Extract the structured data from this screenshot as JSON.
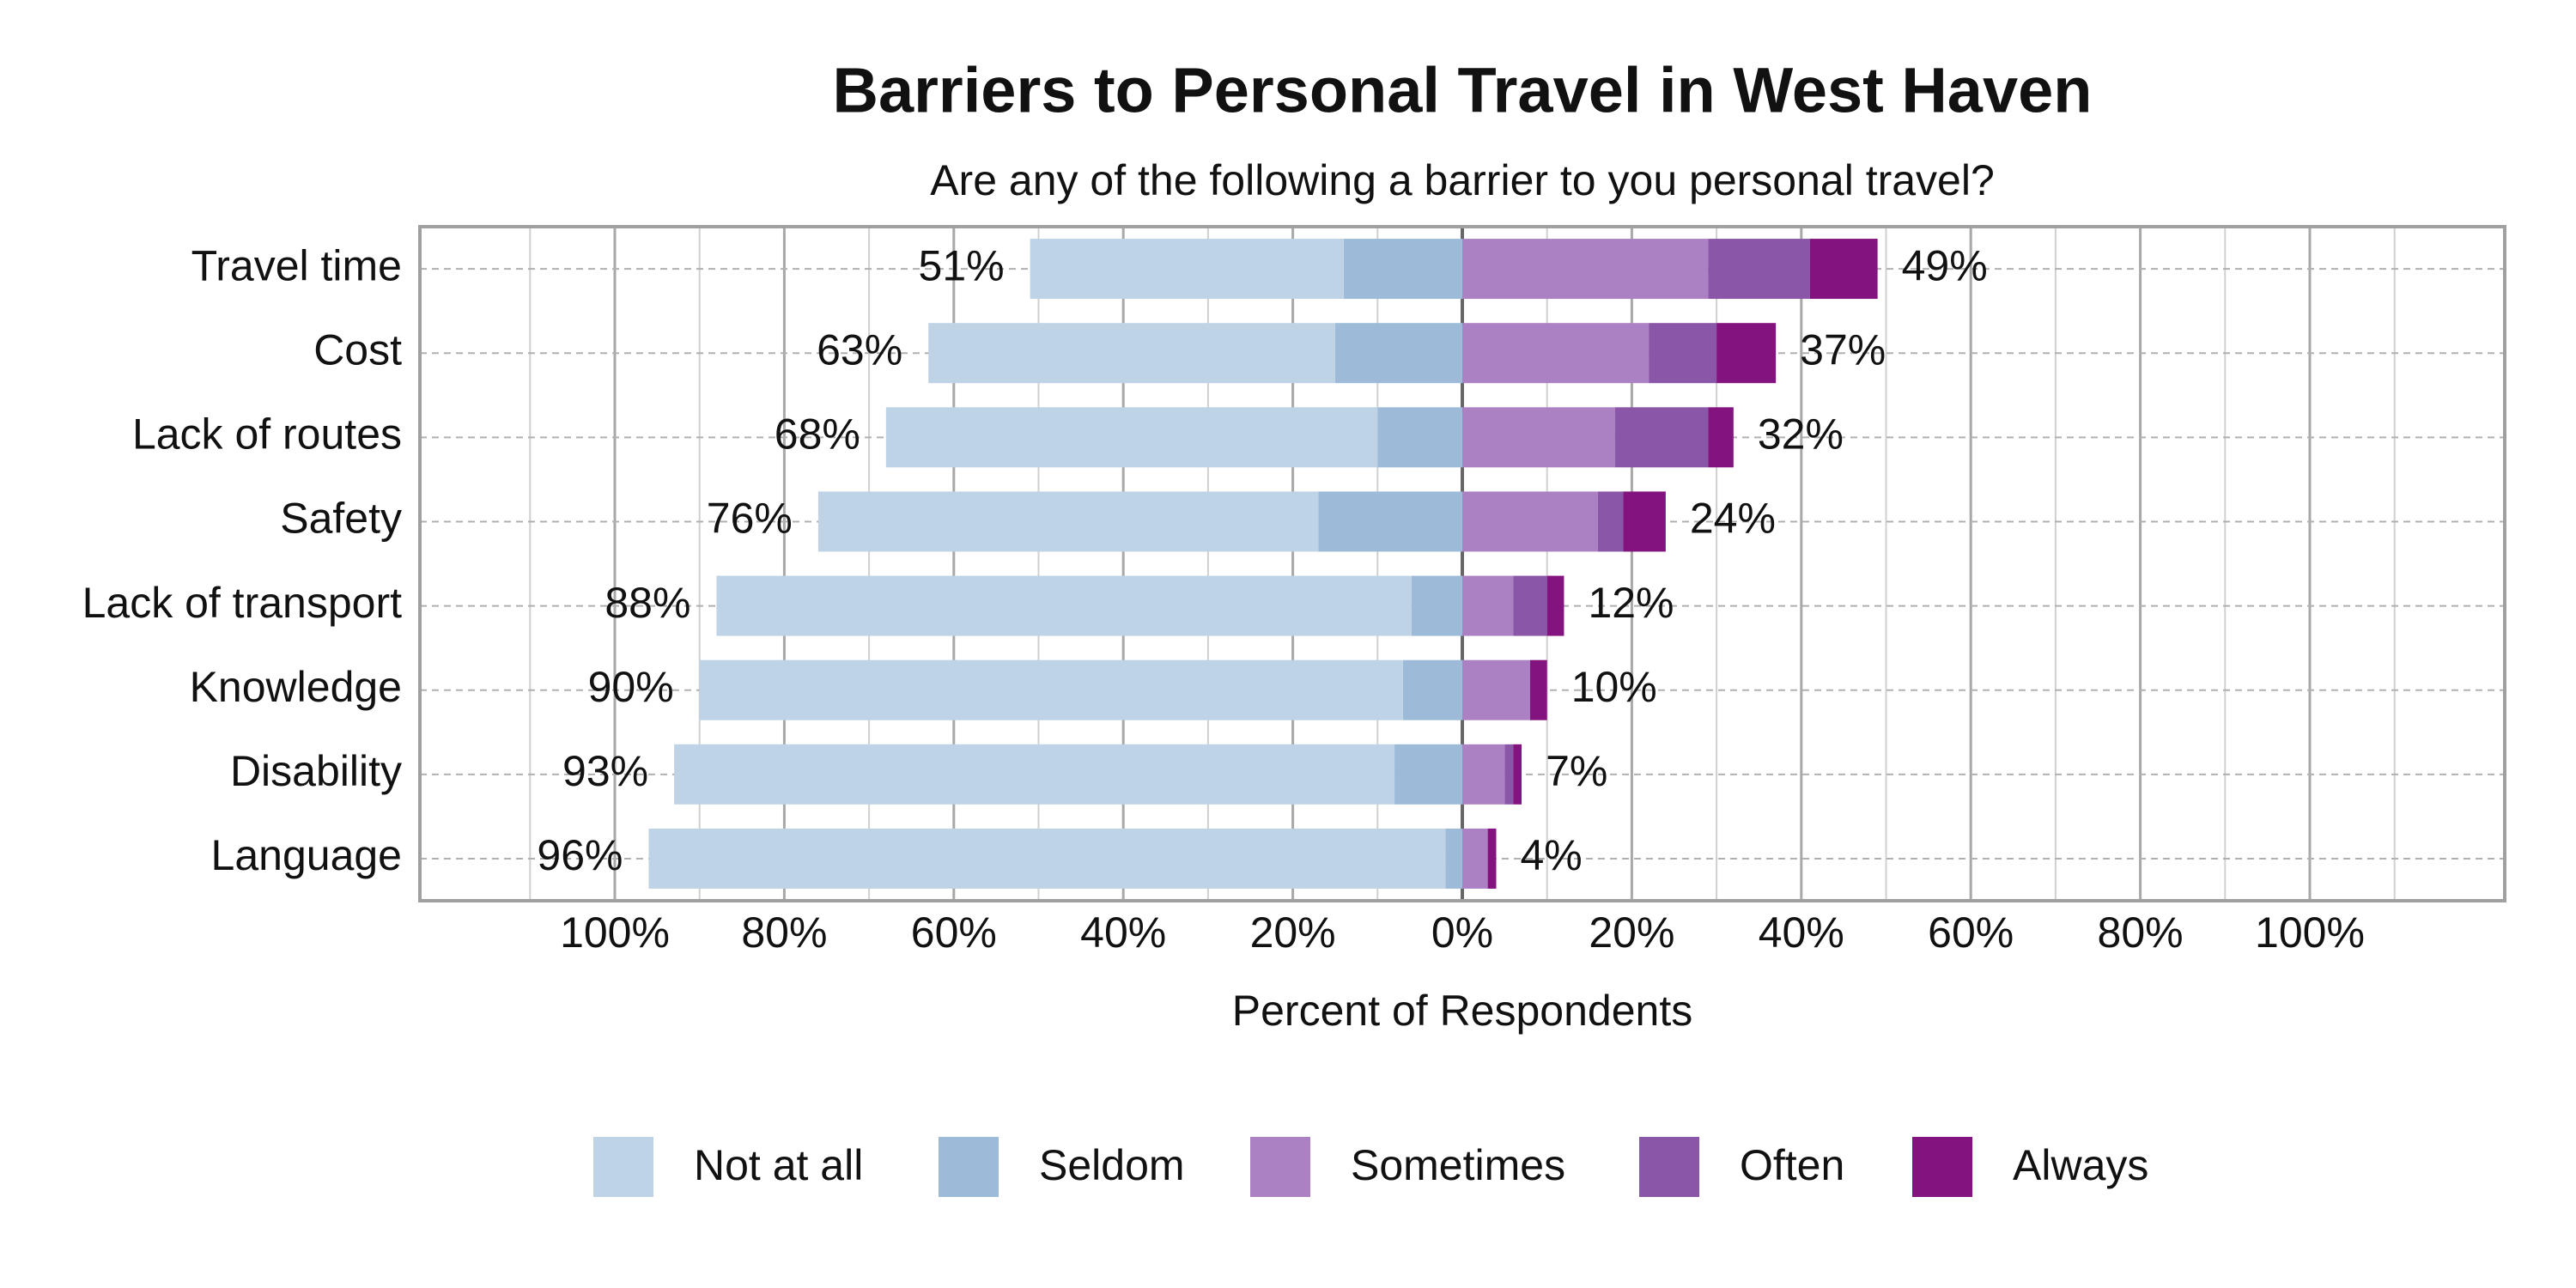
{
  "chart_data": {
    "type": "diverging-bar",
    "title": "Barriers to Personal Travel in West Haven",
    "subtitle": "Are any of the following a barrier to you personal travel?",
    "x_label": "Percent of Respondents",
    "categories": [
      "Travel time",
      "Cost",
      "Lack of routes",
      "Safety",
      "Lack of transport",
      "Knowledge",
      "Disability",
      "Language"
    ],
    "series": [
      {
        "name": "Not at all",
        "color": "#bed3e6",
        "side": "left",
        "values": [
          37,
          48,
          58,
          59,
          82,
          83,
          85,
          94
        ]
      },
      {
        "name": "Seldom",
        "color": "#9dbbd9",
        "side": "left",
        "values": [
          14,
          15,
          10,
          17,
          6,
          7,
          8,
          2
        ]
      },
      {
        "name": "Sometimes",
        "color": "#ac81c4",
        "side": "right",
        "values": [
          29,
          22,
          18,
          16,
          6,
          8,
          5,
          3
        ]
      },
      {
        "name": "Often",
        "color": "#8a57a8",
        "side": "right",
        "values": [
          12,
          8,
          11,
          3,
          4,
          0,
          1,
          0
        ]
      },
      {
        "name": "Always",
        "color": "#83137e",
        "side": "right",
        "values": [
          8,
          7,
          3,
          5,
          2,
          2,
          1,
          1
        ]
      }
    ],
    "totals": {
      "left": {
        "values": [
          51,
          63,
          68,
          76,
          88,
          90,
          93,
          96
        ],
        "value_labels": [
          "51%",
          "63%",
          "68%",
          "76%",
          "88%",
          "90%",
          "93%",
          "96%"
        ]
      },
      "right": {
        "values": [
          49,
          37,
          32,
          24,
          12,
          10,
          7,
          4
        ],
        "value_labels": [
          "49%",
          "37%",
          "32%",
          "24%",
          "12%",
          "10%",
          "7%",
          "4%"
        ]
      }
    },
    "xlim": [
      -123,
      123
    ],
    "xticks": [
      {
        "value": -100,
        "label": "100%"
      },
      {
        "value": -80,
        "label": "80%"
      },
      {
        "value": -60,
        "label": "60%"
      },
      {
        "value": -40,
        "label": "40%"
      },
      {
        "value": -20,
        "label": "20%"
      },
      {
        "value": 0,
        "label": "0%"
      },
      {
        "value": 20,
        "label": "20%"
      },
      {
        "value": 40,
        "label": "40%"
      },
      {
        "value": 60,
        "label": "60%"
      },
      {
        "value": 80,
        "label": "80%"
      },
      {
        "value": 100,
        "label": "100%"
      }
    ],
    "minor_xticks": [
      -110,
      -90,
      -70,
      -50,
      -30,
      -10,
      10,
      30,
      50,
      70,
      90,
      110
    ],
    "grid": true,
    "legend": "bottom"
  }
}
